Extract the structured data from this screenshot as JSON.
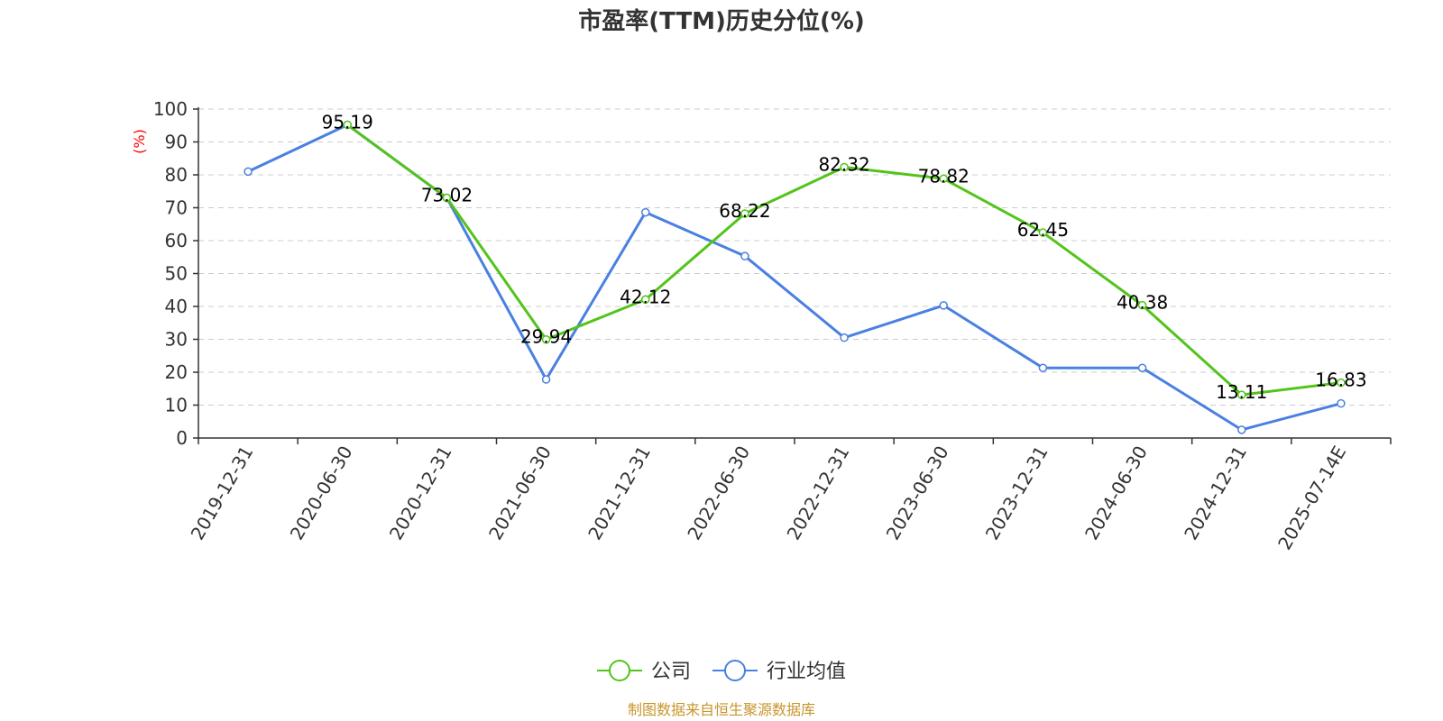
{
  "chart_data": {
    "type": "line",
    "title": "市盈率(TTM)历史分位(%)",
    "ylabel": "(%)",
    "ylim": [
      0,
      100
    ],
    "yticks": [
      0,
      10,
      20,
      30,
      40,
      50,
      60,
      70,
      80,
      90,
      100
    ],
    "grid": true,
    "legend_position": "bottom-center",
    "categories": [
      "2019-12-31",
      "2020-06-30",
      "2020-12-31",
      "2021-06-30",
      "2021-12-31",
      "2022-06-30",
      "2022-12-31",
      "2023-06-30",
      "2023-12-31",
      "2024-06-30",
      "2024-12-31",
      "2025-07-14E"
    ],
    "series": [
      {
        "name": "公司",
        "color": "#52c41a",
        "values": [
          null,
          95.19,
          73.02,
          29.94,
          42.12,
          68.22,
          82.32,
          78.82,
          62.45,
          40.38,
          13.11,
          16.83
        ],
        "labels": [
          "",
          "95.19",
          "73.02",
          "29.94",
          "42.12",
          "68.22",
          "82.32",
          "78.82",
          "62.45",
          "40.38",
          "13.11",
          "16.83"
        ]
      },
      {
        "name": "行业均值",
        "color": "#4a80e0",
        "values": [
          81,
          95.2,
          73,
          17.8,
          68.6,
          55.3,
          30.5,
          40.3,
          21.3,
          21.3,
          2.5,
          10.5
        ]
      }
    ]
  },
  "source": "制图数据来自恒生聚源数据库"
}
